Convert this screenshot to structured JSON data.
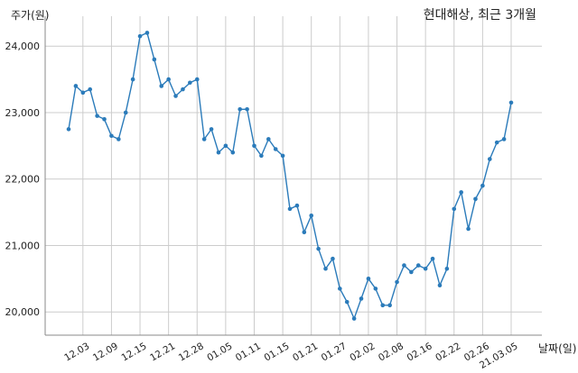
{
  "chart_data": {
    "type": "line",
    "title": "현대해상, 최근 3개월",
    "xlabel": "날짜(일)",
    "ylabel": "주가(원)",
    "ylim": [
      19650,
      24450
    ],
    "yticks": [
      20000,
      21000,
      22000,
      23000,
      24000
    ],
    "ytick_labels": [
      "20,000",
      "21,000",
      "22,000",
      "23,000",
      "24,000"
    ],
    "xtick_labels": [
      "12.03",
      "12.09",
      "12.15",
      "12.21",
      "12.28",
      "01.05",
      "01.11",
      "01.15",
      "01.21",
      "01.27",
      "02.02",
      "02.08",
      "02.16",
      "02.22",
      "02.26",
      "21.03.05"
    ],
    "xtick_index": [
      2,
      6,
      10,
      14,
      18,
      22,
      26,
      30,
      34,
      38,
      42,
      46,
      50,
      54,
      58,
      62
    ],
    "grid": true,
    "series": [
      {
        "values": [
          22750,
          23400,
          23300,
          23350,
          22950,
          22900,
          22650,
          22600,
          23000,
          23500,
          24150,
          24200,
          23800,
          23400,
          23500,
          23250,
          23350,
          23450,
          23500,
          22600,
          22750,
          22400,
          22500,
          22400,
          23050,
          23050,
          22500,
          22350,
          22600,
          22450,
          22350,
          21550,
          21600,
          21200,
          21450,
          20950,
          20650,
          20800,
          20350,
          20150,
          19900,
          20200,
          20500,
          20350,
          20100,
          20100,
          20450,
          20700,
          20600,
          20700,
          20650,
          20800,
          20400,
          20650,
          21550,
          21800,
          21250,
          21700,
          21900,
          22300,
          22550,
          22600,
          23150
        ]
      }
    ],
    "colors": {
      "line": "#2b7bba",
      "grid": "#cccccc",
      "axis": "#888888"
    }
  }
}
